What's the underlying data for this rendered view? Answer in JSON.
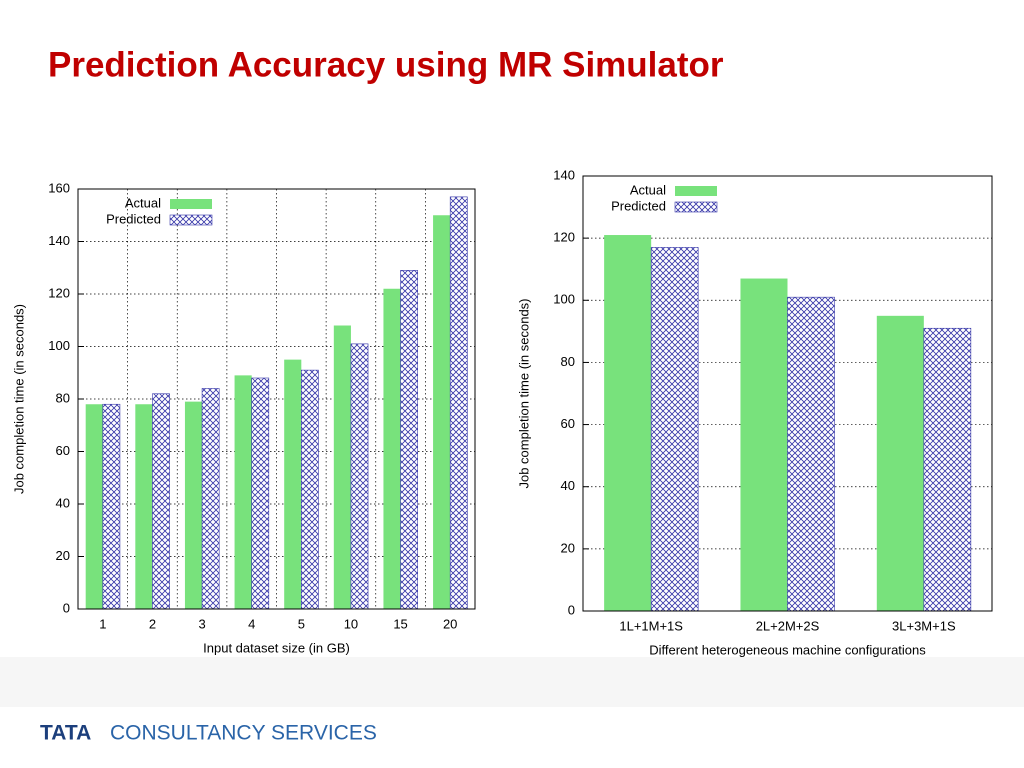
{
  "title": "Prediction Accuracy using MR Simulator",
  "footer": {
    "brand": "TATA",
    "company": "CONSULTANCY SERVICES"
  },
  "chart_data": [
    {
      "type": "bar",
      "xlabel": "Input dataset size (in GB)",
      "ylabel": "Job completion time (in seconds)",
      "categories": [
        "1",
        "2",
        "3",
        "4",
        "5",
        "10",
        "15",
        "20"
      ],
      "series": [
        {
          "name": "Actual",
          "color": "#78e27c",
          "pattern": "solid",
          "values": [
            78,
            78,
            79,
            89,
            95,
            108,
            122,
            150
          ]
        },
        {
          "name": "Predicted",
          "color": "#3535a8",
          "pattern": "crosshatch",
          "values": [
            78,
            82,
            84,
            88,
            91,
            101,
            129,
            157
          ]
        }
      ],
      "ylim": [
        0,
        160
      ],
      "yticks": [
        0,
        20,
        40,
        60,
        80,
        100,
        120,
        140,
        160
      ],
      "grid": "both",
      "legend": "top-left"
    },
    {
      "type": "bar",
      "xlabel": "Different heterogeneous machine configurations",
      "ylabel": "Job completion time (in seconds)",
      "categories": [
        "1L+1M+1S",
        "2L+2M+2S",
        "3L+3M+1S"
      ],
      "series": [
        {
          "name": "Actual",
          "color": "#78e27c",
          "pattern": "solid",
          "values": [
            121,
            107,
            95
          ]
        },
        {
          "name": "Predicted",
          "color": "#3535a8",
          "pattern": "crosshatch",
          "values": [
            117,
            101,
            91
          ]
        }
      ],
      "ylim": [
        0,
        140
      ],
      "yticks": [
        0,
        20,
        40,
        60,
        80,
        100,
        120,
        140
      ],
      "grid": "y",
      "legend": "top-left"
    }
  ]
}
